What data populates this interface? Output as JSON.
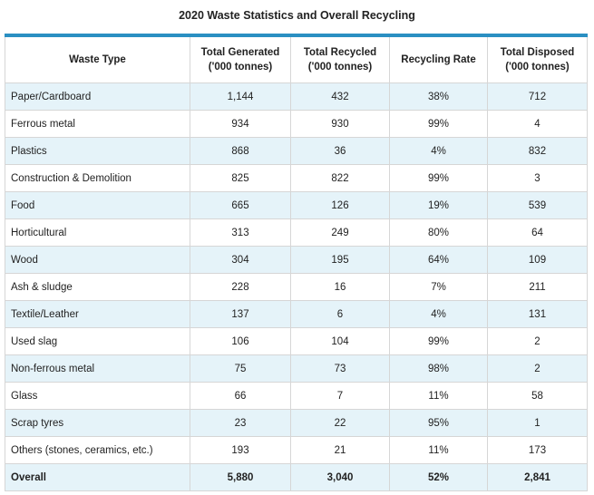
{
  "title": "2020 Waste Statistics and Overall Recycling",
  "headers": [
    "Waste Type",
    "Total Generated\n('000 tonnes)",
    "Total Recycled\n('000 tonnes)",
    "Recycling Rate",
    "Total Disposed\n('000 tonnes)"
  ],
  "rows": [
    [
      "Paper/Cardboard",
      "1,144",
      "432",
      "38%",
      "712"
    ],
    [
      "Ferrous metal",
      "934",
      "930",
      "99%",
      "4"
    ],
    [
      "Plastics",
      "868",
      "36",
      "4%",
      "832"
    ],
    [
      "Construction & Demolition",
      "825",
      "822",
      "99%",
      "3"
    ],
    [
      "Food",
      "665",
      "126",
      "19%",
      "539"
    ],
    [
      "Horticultural",
      "313",
      "249",
      "80%",
      "64"
    ],
    [
      "Wood",
      "304",
      "195",
      "64%",
      "109"
    ],
    [
      "Ash & sludge",
      "228",
      "16",
      "7%",
      "211"
    ],
    [
      "Textile/Leather",
      "137",
      "6",
      "4%",
      "131"
    ],
    [
      "Used slag",
      "106",
      "104",
      "99%",
      "2"
    ],
    [
      "Non-ferrous metal",
      "75",
      "73",
      "98%",
      "2"
    ],
    [
      "Glass",
      "66",
      "7",
      "11%",
      "58"
    ],
    [
      "Scrap tyres",
      "23",
      "22",
      "95%",
      "1"
    ],
    [
      "Others (stones, ceramics, etc.)",
      "193",
      "21",
      "11%",
      "173"
    ],
    [
      "Overall",
      "5,880",
      "3,040",
      "52%",
      "2,841"
    ]
  ],
  "colors": {
    "accent": "#2a8fc2",
    "row_stripe": "#e5f3f9"
  }
}
